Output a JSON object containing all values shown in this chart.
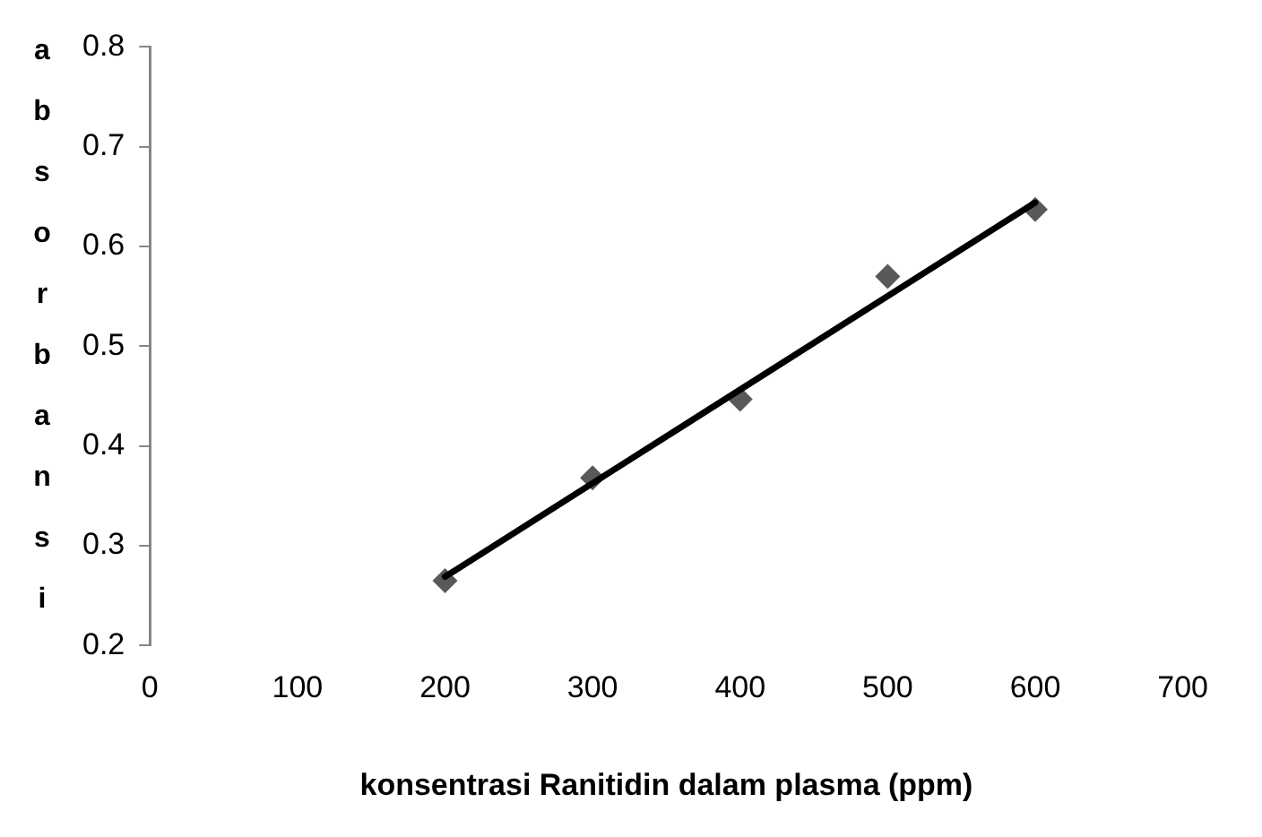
{
  "chart_data": {
    "type": "scatter",
    "xlabel": "konsentrasi Ranitidin dalam plasma (ppm)",
    "ylabel": "absorbansi",
    "x": [
      200,
      300,
      400,
      500,
      600
    ],
    "series": [
      {
        "color": "#595959",
        "values": [
          0.265,
          0.368,
          0.447,
          0.57,
          0.637
        ],
        "marker": "diamond"
      },
      {
        "type": "line",
        "color": "#000000",
        "x": [
          200,
          600
        ],
        "values": [
          0.269,
          0.644
        ],
        "marker": "none"
      }
    ],
    "xlim": [
      0,
      700
    ],
    "xticks": [
      0,
      100,
      200,
      300,
      400,
      500,
      600,
      700
    ],
    "ylim": [
      0.2,
      0.8
    ],
    "yticks": [
      0.2,
      0.3,
      0.4,
      0.5,
      0.6,
      0.7,
      0.8
    ],
    "grid": false,
    "legend": false
  }
}
